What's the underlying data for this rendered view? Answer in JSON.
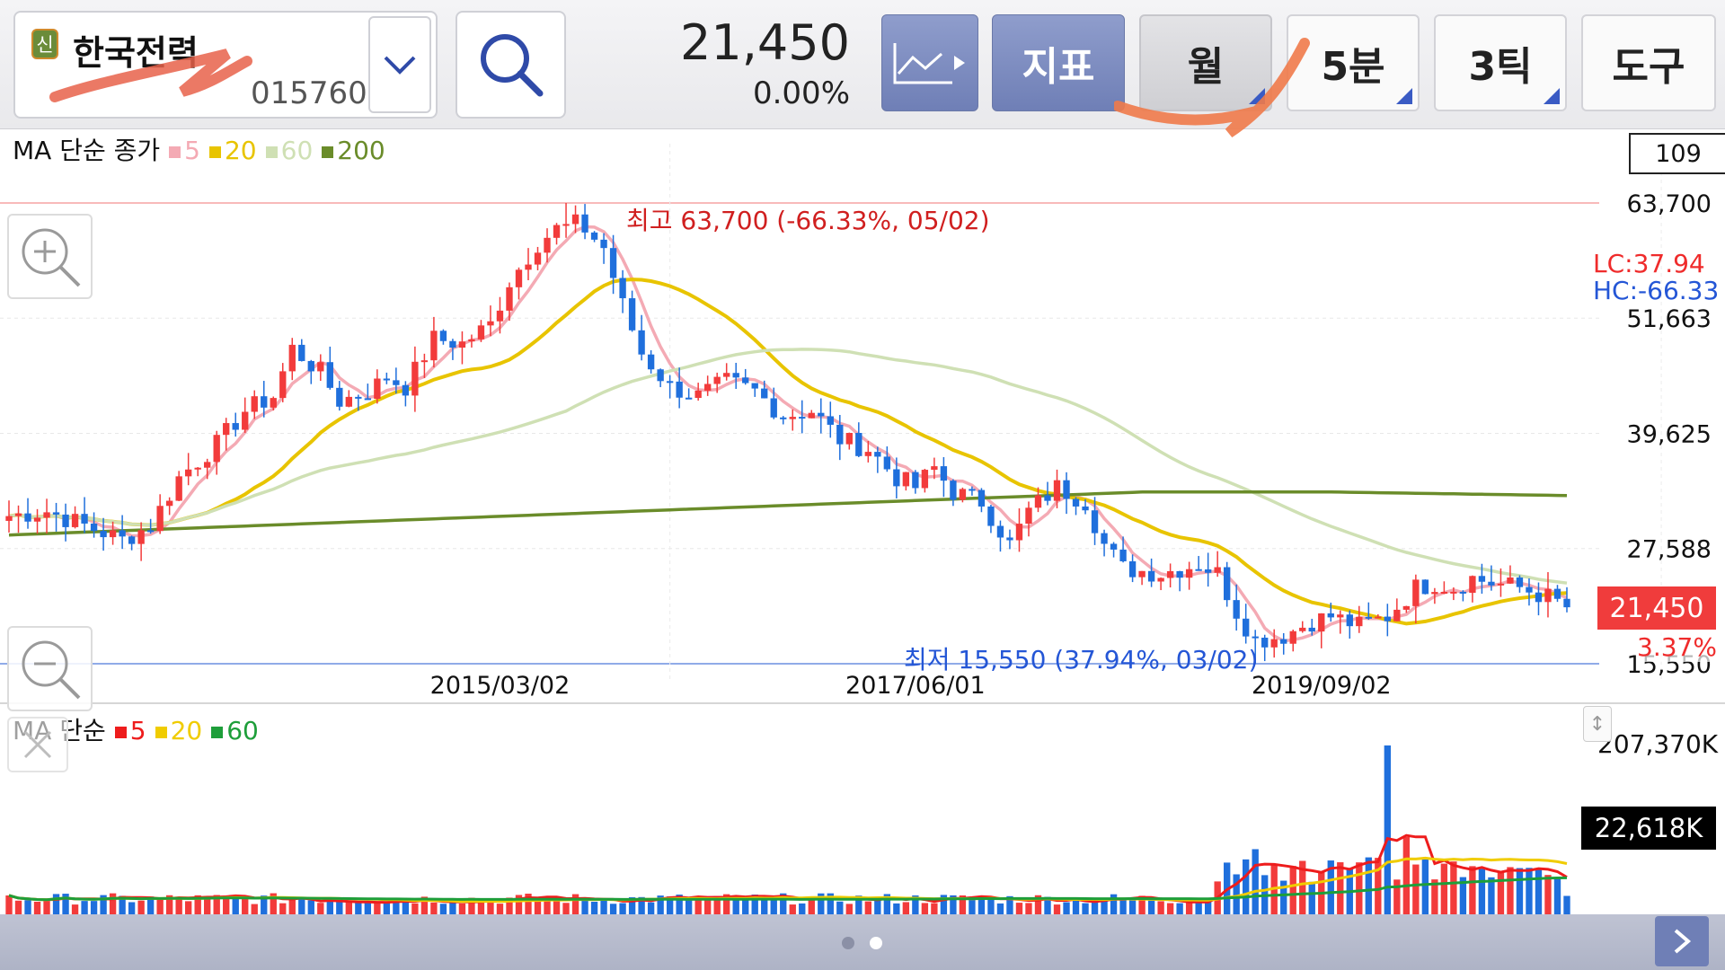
{
  "stock": {
    "badge": "신",
    "name": "한국전력",
    "code": "015760"
  },
  "quote": {
    "price": "21,450",
    "change_pct": "0.00%"
  },
  "toolbar": {
    "indicator_label": "지표",
    "period_label": "월",
    "minute_label": "5분",
    "tick_label": "3틱",
    "tools_label": "도구"
  },
  "price_legend": {
    "title": "MA 단순 종가",
    "items": [
      {
        "label": "5",
        "color": "#f4aab4"
      },
      {
        "label": "20",
        "color": "#e8c400"
      },
      {
        "label": "60",
        "color": "#cfe0b4"
      },
      {
        "label": "200",
        "color": "#6a8c2a"
      }
    ]
  },
  "volume_legend": {
    "title": "MA 단순",
    "items": [
      {
        "label": "5",
        "color": "#ee1c1c"
      },
      {
        "label": "20",
        "color": "#f0cc00"
      },
      {
        "label": "60",
        "color": "#1e9e3a"
      }
    ]
  },
  "chart_info": {
    "period_count": "109",
    "high_label": "최고 63,700 (-66.33%, 05/02)",
    "low_label": "최저 15,550 (37.94%, 03/02)",
    "lc": "LC:37.94",
    "hc": "HC:-66.33",
    "current_tag": "21,450",
    "current_pct": "3.37%",
    "volume_max": "207,370K",
    "volume_current": "22,618K"
  },
  "colors": {
    "up": "#f23b3b",
    "down": "#1f6fdc",
    "accent": "#6f7fb6"
  },
  "chart_data": [
    {
      "type": "candlestick",
      "title": "",
      "y_ticks": [
        63700,
        51663,
        39625,
        27588,
        15550
      ],
      "y_tick_labels": [
        "63,700",
        "51,663",
        "39,625",
        "27,588",
        "15,550"
      ],
      "ylim": [
        15550,
        63700
      ],
      "x_tick_labels": [
        "2015/03/02",
        "2017/06/01",
        "2019/09/02"
      ],
      "candles": [],
      "ma": []
    },
    {
      "type": "bar",
      "title": "",
      "y_tick_labels": [
        "207,370K"
      ],
      "ylim": [
        0,
        207370
      ],
      "values": [],
      "up": [],
      "ma": []
    }
  ],
  "icons": [
    "chevron-down-icon",
    "search-icon",
    "line-chart-icon",
    "zoom-in-icon",
    "zoom-out-icon",
    "close-icon",
    "chevron-right-icon"
  ]
}
